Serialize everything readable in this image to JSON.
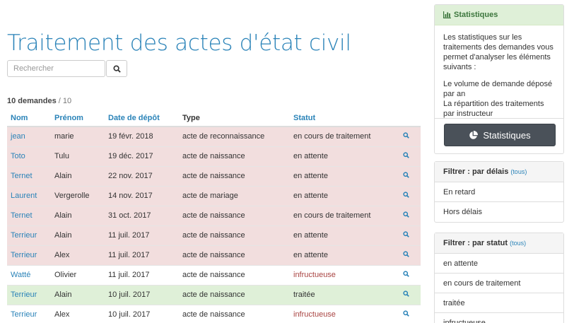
{
  "page": {
    "title": "Traitement des actes d'état civil"
  },
  "search": {
    "placeholder": "Rechercher"
  },
  "count": {
    "bold": "10 demandes",
    "rest": " / 10"
  },
  "table": {
    "headers": [
      "Nom",
      "Prénom",
      "Date de dépôt",
      "Type",
      "Statut"
    ],
    "rows": [
      {
        "nom": "jean",
        "prenom": "marie",
        "date": "19 févr. 2018",
        "type": "acte de reconnaissance",
        "statut": "en cours de traitement",
        "state": "danger"
      },
      {
        "nom": "Toto",
        "prenom": "Tulu",
        "date": "19 déc. 2017",
        "type": "acte de naissance",
        "statut": "en attente",
        "state": "danger"
      },
      {
        "nom": "Ternet",
        "prenom": "Alain",
        "date": "22 nov. 2017",
        "type": "acte de naissance",
        "statut": "en attente",
        "state": "danger"
      },
      {
        "nom": "Laurent",
        "prenom": "Vergerolle",
        "date": "14 nov. 2017",
        "type": "acte de mariage",
        "statut": "en attente",
        "state": "danger"
      },
      {
        "nom": "Ternet",
        "prenom": "Alain",
        "date": "31 oct. 2017",
        "type": "acte de naissance",
        "statut": "en cours de traitement",
        "state": "danger"
      },
      {
        "nom": "Terrieur",
        "prenom": "Alain",
        "date": "11 juil. 2017",
        "type": "acte de naissance",
        "statut": "en attente",
        "state": "danger"
      },
      {
        "nom": "Terrieur",
        "prenom": "Alex",
        "date": "11 juil. 2017",
        "type": "acte de naissance",
        "statut": "en attente",
        "state": "danger"
      },
      {
        "nom": "Watté",
        "prenom": "Olivier",
        "date": "11 juil. 2017",
        "type": "acte de naissance",
        "statut": "infructueuse",
        "state": "normal"
      },
      {
        "nom": "Terrieur",
        "prenom": "Alain",
        "date": "10 juil. 2017",
        "type": "acte de naissance",
        "statut": "traitée",
        "state": "success"
      },
      {
        "nom": "Terrieur",
        "prenom": "Alex",
        "date": "10 juil. 2017",
        "type": "acte de naissance",
        "statut": "infructueuse",
        "state": "normal"
      }
    ]
  },
  "stats_panel": {
    "heading": "Statistiques",
    "intro": "Les statistiques sur les traitements des demandes vous permet d'analyser les éléments suivants :",
    "line1": "Le volume de demande déposé par an",
    "line2": "La répartition des traitements par instructeur",
    "button": "Statistiques"
  },
  "filter_delais": {
    "heading": "Filtrer : par délais",
    "tous": "(tous)",
    "items": [
      "En retard",
      "Hors délais"
    ]
  },
  "filter_statut": {
    "heading": "Filtrer : par statut",
    "tous": "(tous)",
    "items": [
      "en attente",
      "en cours de traitement",
      "traitée",
      "infructueuse"
    ]
  },
  "colors": {
    "link": "#2a83b8",
    "danger_row": "#f2dede",
    "success_row": "#dff0d8",
    "bad_text": "#a94442",
    "button_dark": "#4a5159"
  }
}
